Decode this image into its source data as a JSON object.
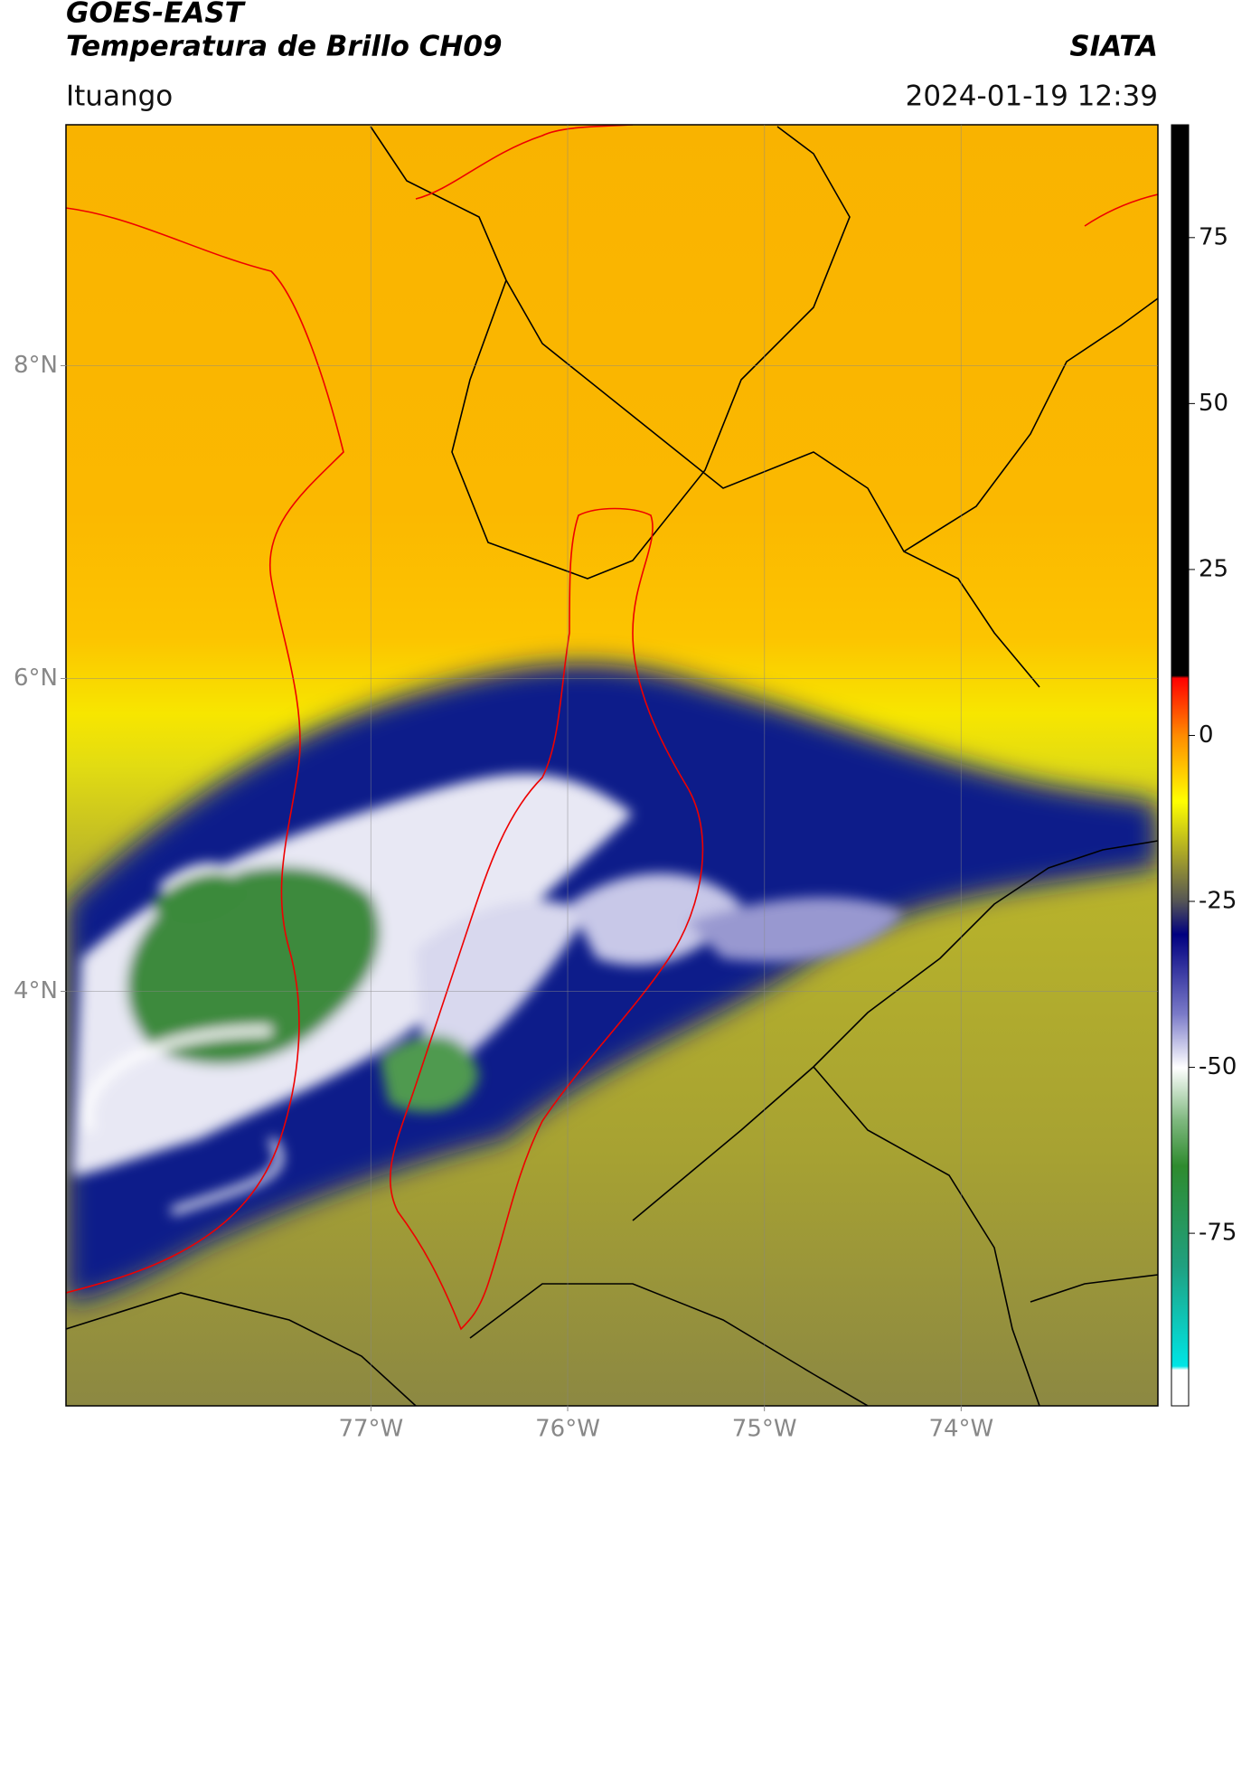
{
  "header": {
    "title": "GOES-EAST",
    "subtitle": "Temperatura de Brillo CH09",
    "agency": "SIATA",
    "location": "Ituango",
    "datetime": "2024-01-19 12:39"
  },
  "map": {
    "xlim": [
      -78.55,
      -73.0
    ],
    "ylim": [
      1.35,
      9.54
    ],
    "xticks": [
      {
        "value": -77,
        "label": "77°W"
      },
      {
        "value": -76,
        "label": "76°W"
      },
      {
        "value": -75,
        "label": "75°W"
      },
      {
        "value": -74,
        "label": "74°W"
      }
    ],
    "yticks": [
      {
        "value": 4,
        "label": "4°N"
      },
      {
        "value": 6,
        "label": "6°N"
      },
      {
        "value": 8,
        "label": "8°N"
      }
    ],
    "grid": true
  },
  "colorbar": {
    "lim": [
      -101,
      92
    ],
    "ticks": [
      -75,
      -50,
      -25,
      0,
      25,
      50,
      75
    ]
  }
}
